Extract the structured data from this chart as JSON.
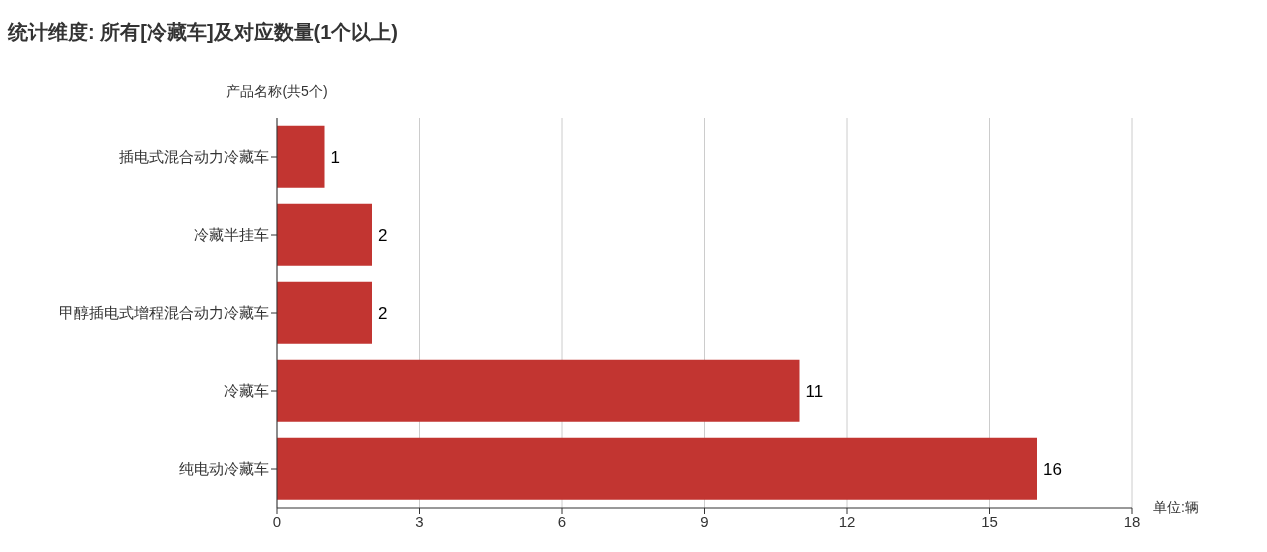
{
  "chart_data": {
    "type": "bar",
    "orientation": "horizontal",
    "title": "统计维度: 所有[冷藏车]及对应数量(1个以上)",
    "ylabel": "产品名称(共5个)",
    "xlabel": "单位:辆",
    "categories": [
      "插电式混合动力冷藏车",
      "冷藏半挂车",
      "甲醇插电式增程混合动力冷藏车",
      "冷藏车",
      "纯电动冷藏车"
    ],
    "values": [
      1,
      2,
      2,
      11,
      16
    ],
    "color": "#c23531",
    "xlim": [
      0,
      18
    ],
    "xticks": [
      0,
      3,
      6,
      9,
      12,
      15,
      18
    ],
    "grid": "x",
    "data_labels": true
  }
}
